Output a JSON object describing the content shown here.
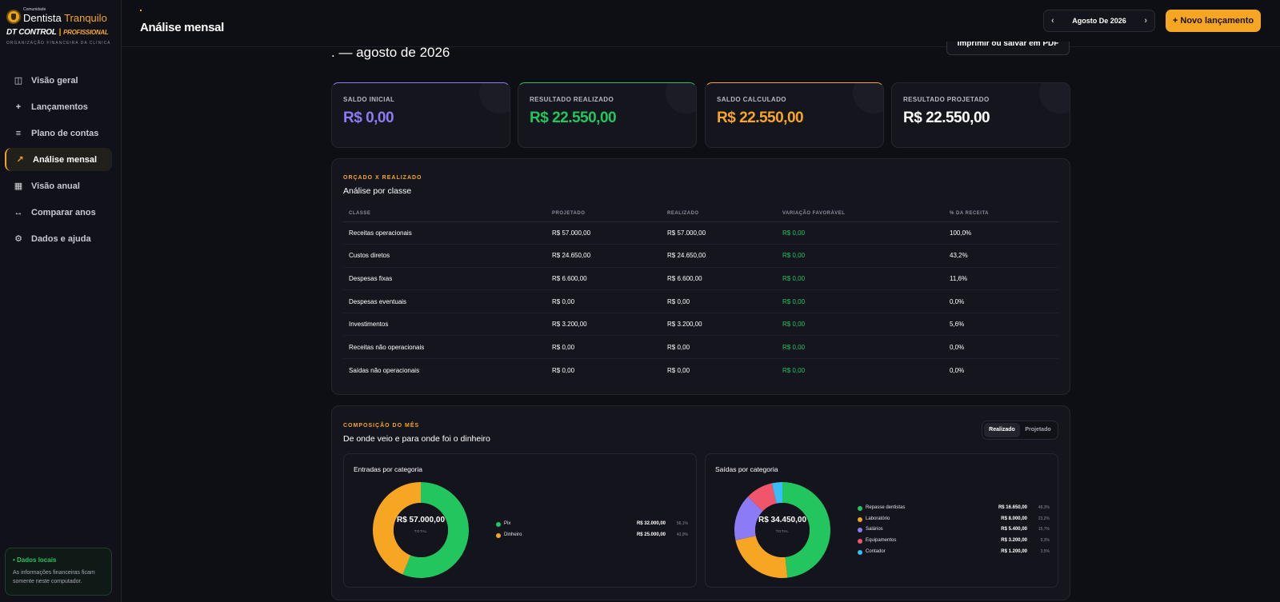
{
  "brand": {
    "community": "Comunidade",
    "name_a": "Dentista",
    "name_b": " Tranquilo",
    "product": "DT CONTROL",
    "separator": "|",
    "edition": "PROFISSIONAL",
    "tagline": "ORGANIZAÇÃO FINANCEIRA DA CLÍNICA"
  },
  "sidebar": {
    "items": [
      {
        "label": "Visão geral",
        "icon": "columns-icon",
        "glyph": "◫"
      },
      {
        "label": "Lançamentos",
        "icon": "plus-icon",
        "glyph": "+"
      },
      {
        "label": "Plano de contas",
        "icon": "list-icon",
        "glyph": "≡"
      },
      {
        "label": "Análise mensal",
        "icon": "trend-icon",
        "glyph": "↗",
        "active": true
      },
      {
        "label": "Visão anual",
        "icon": "calendar-icon",
        "glyph": "▦"
      },
      {
        "label": "Comparar anos",
        "icon": "compare-icon",
        "glyph": "↔"
      },
      {
        "label": "Dados e ajuda",
        "icon": "gear-icon",
        "glyph": "⚙"
      }
    ],
    "local_box": {
      "title": "• Dados locais",
      "text": "As informações financeiras ficam somente neste computador."
    }
  },
  "header": {
    "dot": ".",
    "title": "Análise mensal",
    "month": "Agosto De 2026",
    "prev_arrow": "‹",
    "next_arrow": "›",
    "new_button": "+ Novo lançamento"
  },
  "print_button": "Imprimir ou salvar em PDF",
  "period": ". — agosto de 2026",
  "cards": [
    {
      "label": "SALDO INICIAL",
      "value": "R$ 0,00"
    },
    {
      "label": "RESULTADO REALIZADO",
      "value": "R$ 22.550,00"
    },
    {
      "label": "SALDO CALCULADO",
      "value": "R$ 22.550,00"
    },
    {
      "label": "RESULTADO PROJETADO",
      "value": "R$ 22.550,00"
    }
  ],
  "budget": {
    "eyebrow": "ORÇADO X REALIZADO",
    "title": "Análise por classe",
    "columns": [
      "CLASSE",
      "PROJETADO",
      "REALIZADO",
      "VARIAÇÃO FAVORÁVEL",
      "% DA RECEITA"
    ],
    "rows": [
      [
        "Receitas operacionais",
        "R$ 57.000,00",
        "R$ 57.000,00",
        "R$ 0,00",
        "100,0%"
      ],
      [
        "Custos diretos",
        "R$ 24.650,00",
        "R$ 24.650,00",
        "R$ 0,00",
        "43,2%"
      ],
      [
        "Despesas fixas",
        "R$ 6.600,00",
        "R$ 6.600,00",
        "R$ 0,00",
        "11,6%"
      ],
      [
        "Despesas eventuais",
        "R$ 0,00",
        "R$ 0,00",
        "R$ 0,00",
        "0,0%"
      ],
      [
        "Investimentos",
        "R$ 3.200,00",
        "R$ 3.200,00",
        "R$ 0,00",
        "5,6%"
      ],
      [
        "Receitas não operacionais",
        "R$ 0,00",
        "R$ 0,00",
        "R$ 0,00",
        "0,0%"
      ],
      [
        "Saídas não operacionais",
        "R$ 0,00",
        "R$ 0,00",
        "R$ 0,00",
        "0,0%"
      ]
    ]
  },
  "composition": {
    "eyebrow": "COMPOSIÇÃO DO MÊS",
    "title": "De onde veio e para onde foi o dinheiro",
    "toggle": {
      "realizado": "Realizado",
      "projetado": "Projetado",
      "selected": "Realizado"
    }
  },
  "chart_data": [
    {
      "type": "pie",
      "title": "Entradas por categoria",
      "total_label": "R$ 57.000,00",
      "total_caption": "TOTAL",
      "slices": [
        {
          "name": "Pix",
          "value": 32000,
          "value_label": "R$ 32.000,00",
          "pct": "56,1%",
          "color": "#22c55e"
        },
        {
          "name": "Dinheiro",
          "value": 25000,
          "value_label": "R$ 25.000,00",
          "pct": "43,9%",
          "color": "#f6a623"
        }
      ]
    },
    {
      "type": "pie",
      "title": "Saídas por categoria",
      "total_label": "R$ 34.450,00",
      "total_caption": "TOTAL",
      "slices": [
        {
          "name": "Repasse dentistas",
          "value": 16650,
          "value_label": "R$ 16.650,00",
          "pct": "48,3%",
          "color": "#22c55e"
        },
        {
          "name": "Laboratório",
          "value": 8000,
          "value_label": "R$ 8.000,00",
          "pct": "23,2%",
          "color": "#f6a623"
        },
        {
          "name": "Salários",
          "value": 5400,
          "value_label": "R$ 5.400,00",
          "pct": "15,7%",
          "color": "#8b7cf6"
        },
        {
          "name": "Equipamentos",
          "value": 3200,
          "value_label": "R$ 3.200,00",
          "pct": "9,3%",
          "color": "#f0566b"
        },
        {
          "name": "Contador",
          "value": 1200,
          "value_label": "R$ 1.200,00",
          "pct": "3,5%",
          "color": "#38bdf8"
        }
      ]
    }
  ]
}
